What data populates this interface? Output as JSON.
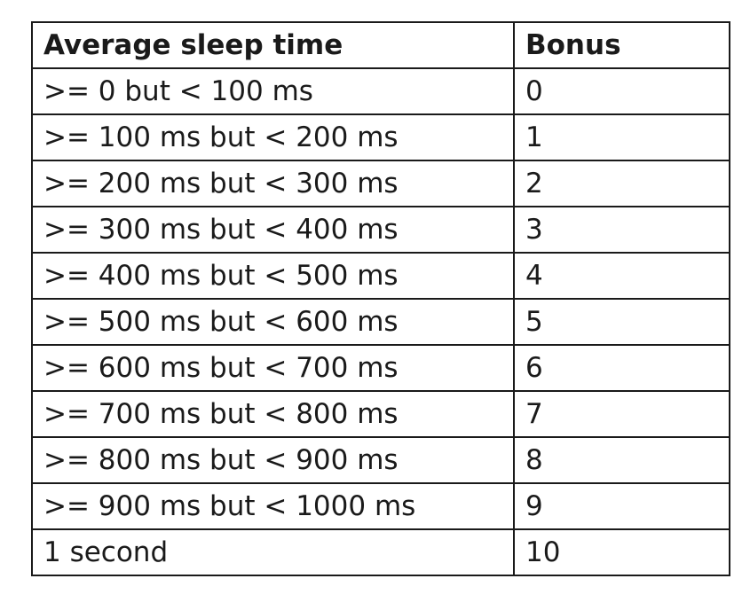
{
  "table": {
    "headers": [
      "Average sleep time",
      "Bonus"
    ],
    "rows": [
      [
        ">= 0 but < 100 ms",
        "0"
      ],
      [
        ">= 100 ms but < 200 ms",
        "1"
      ],
      [
        ">= 200 ms but < 300 ms",
        "2"
      ],
      [
        ">= 300 ms but < 400 ms",
        "3"
      ],
      [
        ">= 400 ms but < 500 ms",
        "4"
      ],
      [
        ">= 500 ms but < 600 ms",
        "5"
      ],
      [
        ">= 600 ms but < 700 ms",
        "6"
      ],
      [
        ">= 700 ms but < 800 ms",
        "7"
      ],
      [
        ">= 800 ms but < 900 ms",
        "8"
      ],
      [
        ">= 900 ms but < 1000 ms",
        "9"
      ],
      [
        "1 second",
        "10"
      ]
    ]
  }
}
